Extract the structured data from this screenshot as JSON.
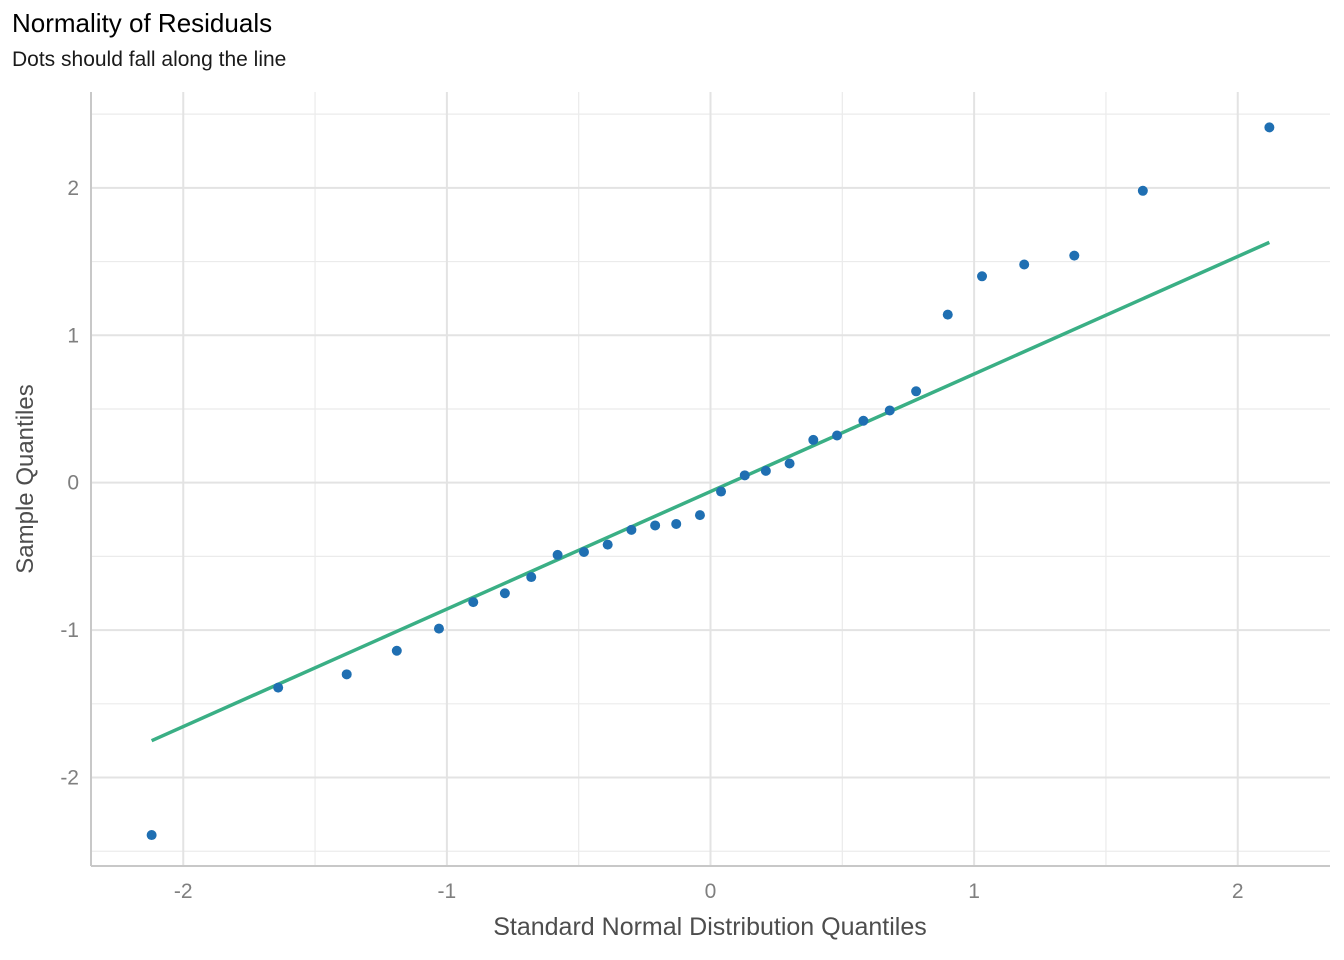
{
  "chart_data": {
    "type": "scatter",
    "title": "Normality of Residuals",
    "subtitle": "Dots should fall along the line",
    "xlabel": "Standard Normal Distribution Quantiles",
    "ylabel": "Sample Quantiles",
    "xlim": [
      -2.35,
      2.35
    ],
    "ylim": [
      -2.6,
      2.65
    ],
    "xticks": [
      -2,
      -1,
      0,
      1,
      2
    ],
    "yticks": [
      -2,
      -1,
      0,
      1,
      2
    ],
    "grid": true,
    "point_color": "#1f6fb2",
    "line_color": "#3aaf85",
    "reference_line": {
      "x": [
        -2.12,
        2.12
      ],
      "y": [
        -1.75,
        1.63
      ]
    },
    "points": {
      "x": [
        -2.12,
        -1.64,
        -1.38,
        -1.19,
        -1.03,
        -0.9,
        -0.78,
        -0.68,
        -0.58,
        -0.48,
        -0.39,
        -0.3,
        -0.21,
        -0.13,
        -0.04,
        0.04,
        0.13,
        0.21,
        0.3,
        0.39,
        0.48,
        0.58,
        0.68,
        0.78,
        0.9,
        1.03,
        1.19,
        1.38,
        1.64,
        2.12
      ],
      "y": [
        -2.39,
        -1.39,
        -1.3,
        -1.14,
        -0.99,
        -0.81,
        -0.75,
        -0.64,
        -0.49,
        -0.47,
        -0.42,
        -0.32,
        -0.29,
        -0.28,
        -0.22,
        -0.06,
        0.05,
        0.08,
        0.13,
        0.29,
        0.32,
        0.42,
        0.49,
        0.62,
        1.14,
        1.4,
        1.48,
        1.54,
        1.98,
        2.41
      ]
    }
  }
}
